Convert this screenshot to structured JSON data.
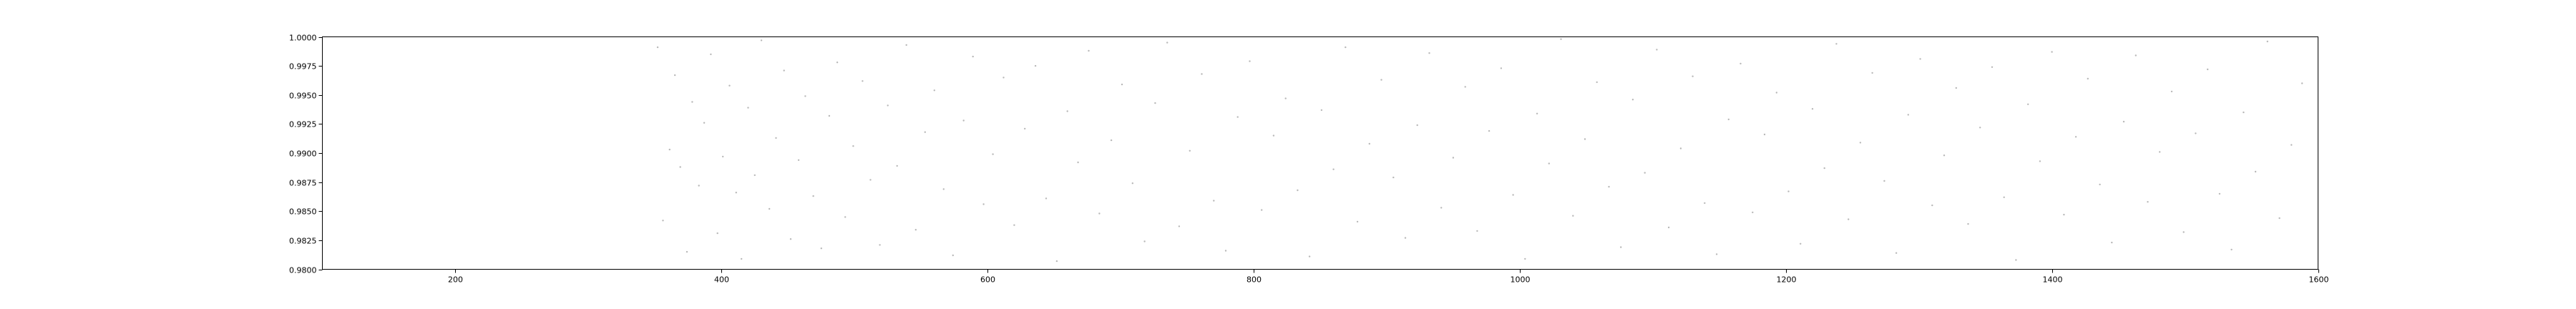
{
  "chart_data": {
    "type": "scatter",
    "title": "",
    "xlabel": "",
    "ylabel": "",
    "xlim": [
      100,
      1600
    ],
    "ylim": [
      0.98,
      1.0
    ],
    "grid": false,
    "x_ticks": [
      200,
      400,
      600,
      800,
      1000,
      1200,
      1400,
      1600
    ],
    "x_tick_labels": [
      "200",
      "400",
      "600",
      "800",
      "1000",
      "1200",
      "1400",
      "1600"
    ],
    "y_ticks": [
      0.98,
      0.9825,
      0.985,
      0.9875,
      0.99,
      0.9925,
      0.995,
      0.9975,
      1.0
    ],
    "y_tick_labels": [
      "0.9800",
      "0.9825",
      "0.9850",
      "0.9875",
      "0.9900",
      "0.9925",
      "0.9950",
      "0.9975",
      "1.0000"
    ],
    "point_color": "#b8b8b8",
    "series": [
      {
        "x_range": [
          350,
          1590
        ],
        "y_range": [
          0.98,
          1.0
        ],
        "points": [
          [
            352,
            0.9991
          ],
          [
            356,
            0.9842
          ],
          [
            361,
            0.9903
          ],
          [
            365,
            0.9967
          ],
          [
            369,
            0.9888
          ],
          [
            374,
            0.9815
          ],
          [
            378,
            0.9944
          ],
          [
            383,
            0.9872
          ],
          [
            387,
            0.9926
          ],
          [
            392,
            0.9985
          ],
          [
            397,
            0.9831
          ],
          [
            401,
            0.9897
          ],
          [
            406,
            0.9958
          ],
          [
            411,
            0.9866
          ],
          [
            415,
            0.9809
          ],
          [
            420,
            0.9939
          ],
          [
            425,
            0.9881
          ],
          [
            430,
            0.9997
          ],
          [
            436,
            0.9852
          ],
          [
            441,
            0.9913
          ],
          [
            447,
            0.9971
          ],
          [
            452,
            0.9826
          ],
          [
            458,
            0.9894
          ],
          [
            463,
            0.9949
          ],
          [
            469,
            0.9863
          ],
          [
            475,
            0.9818
          ],
          [
            481,
            0.9932
          ],
          [
            487,
            0.9978
          ],
          [
            493,
            0.9845
          ],
          [
            499,
            0.9906
          ],
          [
            506,
            0.9962
          ],
          [
            512,
            0.9877
          ],
          [
            519,
            0.9821
          ],
          [
            525,
            0.9941
          ],
          [
            532,
            0.9889
          ],
          [
            539,
            0.9993
          ],
          [
            546,
            0.9834
          ],
          [
            553,
            0.9918
          ],
          [
            560,
            0.9954
          ],
          [
            567,
            0.9869
          ],
          [
            574,
            0.9812
          ],
          [
            582,
            0.9928
          ],
          [
            589,
            0.9983
          ],
          [
            597,
            0.9856
          ],
          [
            604,
            0.9899
          ],
          [
            612,
            0.9965
          ],
          [
            620,
            0.9838
          ],
          [
            628,
            0.9921
          ],
          [
            636,
            0.9975
          ],
          [
            644,
            0.9861
          ],
          [
            652,
            0.9807
          ],
          [
            660,
            0.9936
          ],
          [
            668,
            0.9892
          ],
          [
            676,
            0.9988
          ],
          [
            684,
            0.9848
          ],
          [
            693,
            0.9911
          ],
          [
            701,
            0.9959
          ],
          [
            709,
            0.9874
          ],
          [
            718,
            0.9824
          ],
          [
            726,
            0.9943
          ],
          [
            735,
            0.9995
          ],
          [
            744,
            0.9837
          ],
          [
            752,
            0.9902
          ],
          [
            761,
            0.9968
          ],
          [
            770,
            0.9859
          ],
          [
            779,
            0.9816
          ],
          [
            788,
            0.9931
          ],
          [
            797,
            0.9979
          ],
          [
            806,
            0.9851
          ],
          [
            815,
            0.9915
          ],
          [
            824,
            0.9947
          ],
          [
            833,
            0.9868
          ],
          [
            842,
            0.9811
          ],
          [
            851,
            0.9937
          ],
          [
            860,
            0.9886
          ],
          [
            869,
            0.9991
          ],
          [
            878,
            0.9841
          ],
          [
            887,
            0.9908
          ],
          [
            896,
            0.9963
          ],
          [
            905,
            0.9879
          ],
          [
            914,
            0.9827
          ],
          [
            923,
            0.9924
          ],
          [
            932,
            0.9986
          ],
          [
            941,
            0.9853
          ],
          [
            950,
            0.9896
          ],
          [
            959,
            0.9957
          ],
          [
            968,
            0.9833
          ],
          [
            977,
            0.9919
          ],
          [
            986,
            0.9973
          ],
          [
            995,
            0.9864
          ],
          [
            1004,
            0.9809
          ],
          [
            1013,
            0.9934
          ],
          [
            1022,
            0.9891
          ],
          [
            1031,
            0.9998
          ],
          [
            1040,
            0.9846
          ],
          [
            1049,
            0.9912
          ],
          [
            1058,
            0.9961
          ],
          [
            1067,
            0.9871
          ],
          [
            1076,
            0.9819
          ],
          [
            1085,
            0.9946
          ],
          [
            1094,
            0.9883
          ],
          [
            1103,
            0.9989
          ],
          [
            1112,
            0.9836
          ],
          [
            1121,
            0.9904
          ],
          [
            1130,
            0.9966
          ],
          [
            1139,
            0.9857
          ],
          [
            1148,
            0.9813
          ],
          [
            1157,
            0.9929
          ],
          [
            1166,
            0.9977
          ],
          [
            1175,
            0.9849
          ],
          [
            1184,
            0.9916
          ],
          [
            1193,
            0.9952
          ],
          [
            1202,
            0.9867
          ],
          [
            1211,
            0.9822
          ],
          [
            1220,
            0.9938
          ],
          [
            1229,
            0.9887
          ],
          [
            1238,
            0.9994
          ],
          [
            1247,
            0.9843
          ],
          [
            1256,
            0.9909
          ],
          [
            1265,
            0.9969
          ],
          [
            1274,
            0.9876
          ],
          [
            1283,
            0.9814
          ],
          [
            1292,
            0.9933
          ],
          [
            1301,
            0.9981
          ],
          [
            1310,
            0.9855
          ],
          [
            1319,
            0.9898
          ],
          [
            1328,
            0.9956
          ],
          [
            1337,
            0.9839
          ],
          [
            1346,
            0.9922
          ],
          [
            1355,
            0.9974
          ],
          [
            1364,
            0.9862
          ],
          [
            1373,
            0.9808
          ],
          [
            1382,
            0.9942
          ],
          [
            1391,
            0.9893
          ],
          [
            1400,
            0.9987
          ],
          [
            1409,
            0.9847
          ],
          [
            1418,
            0.9914
          ],
          [
            1427,
            0.9964
          ],
          [
            1436,
            0.9873
          ],
          [
            1445,
            0.9823
          ],
          [
            1454,
            0.9927
          ],
          [
            1463,
            0.9984
          ],
          [
            1472,
            0.9858
          ],
          [
            1481,
            0.9901
          ],
          [
            1490,
            0.9953
          ],
          [
            1499,
            0.9832
          ],
          [
            1508,
            0.9917
          ],
          [
            1517,
            0.9972
          ],
          [
            1526,
            0.9865
          ],
          [
            1535,
            0.9817
          ],
          [
            1544,
            0.9935
          ],
          [
            1553,
            0.9884
          ],
          [
            1562,
            0.9996
          ],
          [
            1571,
            0.9844
          ],
          [
            1580,
            0.9907
          ],
          [
            1588,
            0.996
          ]
        ]
      }
    ]
  }
}
